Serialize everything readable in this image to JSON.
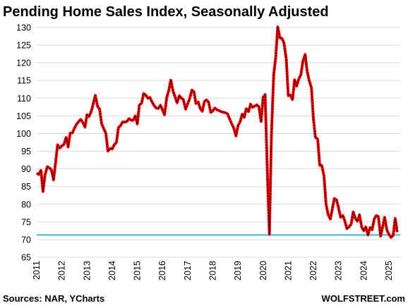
{
  "chart_data": {
    "type": "line",
    "title": "Pending Home Sales Index, Seasonally Adjusted",
    "xlabel": "",
    "ylabel": "",
    "ylim": [
      65,
      130
    ],
    "xlim": [
      2011,
      2025.45
    ],
    "yticks": [
      65,
      70,
      75,
      80,
      85,
      90,
      95,
      100,
      105,
      110,
      115,
      120,
      125,
      130
    ],
    "xticks": [
      "2011",
      "2012",
      "2013",
      "2014",
      "2015",
      "2016",
      "2017",
      "2018",
      "2019",
      "2020",
      "2021",
      "2022",
      "2023",
      "2024",
      "2025"
    ],
    "grid": "horizontal",
    "line_color": "#ff0000",
    "dash_color": "#000000",
    "reference_line": {
      "y": 71.3,
      "color": "#3fb8d8"
    },
    "series": [
      {
        "x": [
          2011.0,
          2011.08,
          2011.17,
          2011.25,
          2011.33,
          2011.42,
          2011.5,
          2011.58,
          2011.67,
          2011.75,
          2011.83,
          2011.92,
          2012.0,
          2012.08,
          2012.17,
          2012.25,
          2012.33,
          2012.42,
          2012.5,
          2012.58,
          2012.67,
          2012.75,
          2012.83,
          2012.92,
          2013.0,
          2013.08,
          2013.17,
          2013.25,
          2013.33,
          2013.42,
          2013.5,
          2013.58,
          2013.67,
          2013.75,
          2013.83,
          2013.92,
          2014.0,
          2014.08,
          2014.17,
          2014.25,
          2014.33,
          2014.42,
          2014.5,
          2014.58,
          2014.67,
          2014.75,
          2014.83,
          2014.92,
          2015.0,
          2015.08,
          2015.17,
          2015.25,
          2015.33,
          2015.42,
          2015.5,
          2015.58,
          2015.67,
          2015.75,
          2015.83,
          2015.92,
          2016.0,
          2016.08,
          2016.17,
          2016.25,
          2016.33,
          2016.42,
          2016.5,
          2016.58,
          2016.67,
          2016.75,
          2016.83,
          2016.92,
          2017.0,
          2017.08,
          2017.17,
          2017.25,
          2017.33,
          2017.42,
          2017.5,
          2017.58,
          2017.67,
          2017.75,
          2017.83,
          2017.92,
          2018.0,
          2018.08,
          2018.17,
          2018.25,
          2018.33,
          2018.42,
          2018.5,
          2018.58,
          2018.67,
          2018.75,
          2018.83,
          2018.92,
          2019.0,
          2019.08,
          2019.17,
          2019.25,
          2019.33,
          2019.42,
          2019.5,
          2019.58,
          2019.67,
          2019.75,
          2019.83,
          2019.92,
          2020.0,
          2020.08,
          2020.17,
          2020.25,
          2020.33,
          2020.42,
          2020.5,
          2020.58,
          2020.67,
          2020.75,
          2020.83,
          2020.92,
          2021.0,
          2021.08,
          2021.17,
          2021.25,
          2021.33,
          2021.42,
          2021.5,
          2021.58,
          2021.67,
          2021.75,
          2021.83,
          2021.92,
          2022.0,
          2022.08,
          2022.17,
          2022.25,
          2022.33,
          2022.42,
          2022.5,
          2022.58,
          2022.67,
          2022.75,
          2022.83,
          2022.92,
          2023.0,
          2023.08,
          2023.17,
          2023.25,
          2023.33,
          2023.42,
          2023.5,
          2023.58,
          2023.67,
          2023.75,
          2023.83,
          2023.92,
          2024.0,
          2024.08,
          2024.17,
          2024.25,
          2024.33,
          2024.42,
          2024.5,
          2024.58,
          2024.67,
          2024.75,
          2024.83,
          2024.92,
          2025.0,
          2025.08,
          2025.17,
          2025.25,
          2025.33
        ],
        "y": [
          88.8,
          88.4,
          89.6,
          83.6,
          88.3,
          90.6,
          90.3,
          89.8,
          86.9,
          91.8,
          96.8,
          95.9,
          96.5,
          96.9,
          98.9,
          96.2,
          100.1,
          100.2,
          101.5,
          102.6,
          103.4,
          104.0,
          103.2,
          101.8,
          105.3,
          104.8,
          106.3,
          108.5,
          110.8,
          107.7,
          106.9,
          102.8,
          101.3,
          100.0,
          95.0,
          95.8,
          95.6,
          96.8,
          97.5,
          101.7,
          102.2,
          103.3,
          103.2,
          103.4,
          104.2,
          103.8,
          103.7,
          105.0,
          102.7,
          108.0,
          108.6,
          111.3,
          110.9,
          110.0,
          110.2,
          109.0,
          107.9,
          107.2,
          107.1,
          108.0,
          106.7,
          105.3,
          110.2,
          112.2,
          115.1,
          112.0,
          110.4,
          108.7,
          110.7,
          110.0,
          109.6,
          106.9,
          108.4,
          109.9,
          112.3,
          111.8,
          108.5,
          108.9,
          107.1,
          106.3,
          109.1,
          109.5,
          108.9,
          106.0,
          106.4,
          107.2,
          106.7,
          106.5,
          106.2,
          106.0,
          105.9,
          105.6,
          104.1,
          102.8,
          101.6,
          99.3,
          102.2,
          103.2,
          105.5,
          104.6,
          107.0,
          106.2,
          108.3,
          107.4,
          107.8,
          108.1,
          107.6,
          103.4,
          110.2,
          111.0,
          88.6,
          71.5,
          99.6,
          116.6,
          121.5,
          130.2,
          127.0,
          126.9,
          125.6,
          121.1,
          110.7,
          110.9,
          109.6,
          115.2,
          113.4,
          115.5,
          116.6,
          120.4,
          122.4,
          117.6,
          115.0,
          113.0,
          104.1,
          98.9,
          98.4,
          91.0,
          91.0,
          88.0,
          80.1,
          77.2,
          75.8,
          78.6,
          81.6,
          81.2,
          78.9,
          76.3,
          76.8,
          75.2,
          73.1,
          73.6,
          74.4,
          77.8,
          75.9,
          75.2,
          77.0,
          73.5,
          72.5,
          73.6,
          71.3,
          73.4,
          72.8,
          75.9,
          76.8,
          76.5,
          71.0,
          73.6,
          76.3,
          72.7,
          71.5,
          70.6,
          71.2,
          76.0,
          72.1
        ]
      }
    ]
  },
  "footer": {
    "source": "Sources: NAR, YCharts",
    "brand": "WOLFSTREET.com"
  }
}
